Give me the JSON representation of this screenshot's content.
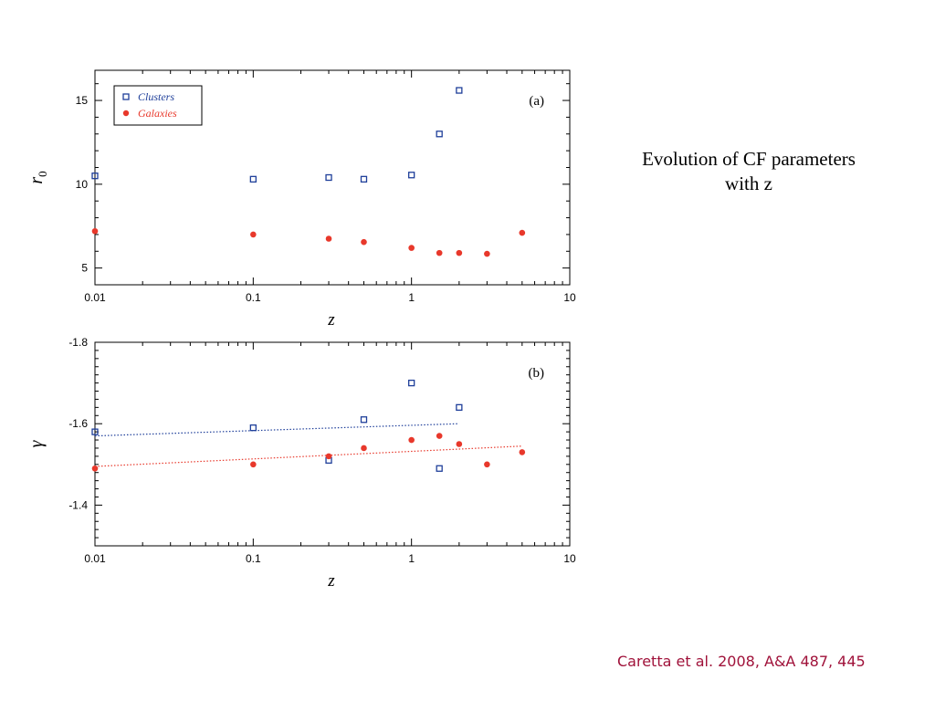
{
  "slide": {
    "title_lines": [
      "Evolution of CF parameters",
      "with z"
    ],
    "citation": "Caretta et al. 2008, A&A 487, 445",
    "colors": {
      "clusters": "#1f3f9a",
      "galaxies": "#e8382b",
      "citation": "#a0123a"
    }
  },
  "chart_data": [
    {
      "type": "scatter",
      "panel_label": "(a)",
      "xlabel": "z",
      "ylabel": "r",
      "ylabel_subscript": "0",
      "xscale": "log",
      "xlim": [
        0.01,
        10
      ],
      "ylim": [
        4,
        16.8
      ],
      "xticks": [
        0.01,
        0.1,
        1,
        10
      ],
      "xtick_labels": [
        "0.01",
        "0.1",
        "1",
        "10"
      ],
      "yticks": [
        5,
        10,
        15
      ],
      "ytick_labels": [
        "5",
        "10",
        "15"
      ],
      "legend": {
        "placement": "top-left",
        "entries": [
          "Clusters",
          "Galaxies"
        ]
      },
      "series": [
        {
          "name": "Clusters",
          "marker": "open-square",
          "color": "#1f3f9a",
          "x": [
            0.01,
            0.1,
            0.3,
            0.5,
            1.0,
            1.5,
            2.0
          ],
          "y": [
            10.5,
            10.3,
            10.4,
            10.3,
            10.55,
            13.0,
            15.6
          ]
        },
        {
          "name": "Galaxies",
          "marker": "filled-circle",
          "color": "#e8382b",
          "x": [
            0.01,
            0.1,
            0.3,
            0.5,
            1.0,
            1.5,
            2.0,
            3.0,
            5.0
          ],
          "y": [
            7.2,
            7.0,
            6.75,
            6.55,
            6.2,
            5.9,
            5.9,
            5.85,
            7.1
          ]
        }
      ]
    },
    {
      "type": "scatter",
      "panel_label": "(b)",
      "xlabel": "z",
      "ylabel": "γ",
      "xscale": "log",
      "xlim": [
        0.01,
        10
      ],
      "ylim": [
        -1.8,
        -1.3
      ],
      "yaxis_inverted": true,
      "xticks": [
        0.01,
        0.1,
        1,
        10
      ],
      "xtick_labels": [
        "0.01",
        "0.1",
        "1",
        "10"
      ],
      "yticks": [
        -1.8,
        -1.6,
        -1.4
      ],
      "ytick_labels": [
        "-1.8",
        "-1.6",
        "-1.4"
      ],
      "series": [
        {
          "name": "Clusters",
          "marker": "open-square",
          "color": "#1f3f9a",
          "x": [
            0.01,
            0.1,
            0.3,
            0.5,
            1.0,
            1.5,
            2.0
          ],
          "y": [
            -1.58,
            -1.59,
            -1.51,
            -1.61,
            -1.7,
            -1.49,
            -1.64
          ],
          "fit": {
            "x": [
              0.01,
              2.0
            ],
            "y": [
              -1.57,
              -1.6
            ]
          }
        },
        {
          "name": "Galaxies",
          "marker": "filled-circle",
          "color": "#e8382b",
          "x": [
            0.01,
            0.1,
            0.3,
            0.5,
            1.0,
            1.5,
            2.0,
            3.0,
            5.0
          ],
          "y": [
            -1.49,
            -1.5,
            -1.52,
            -1.54,
            -1.56,
            -1.57,
            -1.55,
            -1.5,
            -1.53
          ],
          "fit": {
            "x": [
              0.01,
              5.0
            ],
            "y": [
              -1.495,
              -1.545
            ]
          }
        }
      ]
    }
  ]
}
